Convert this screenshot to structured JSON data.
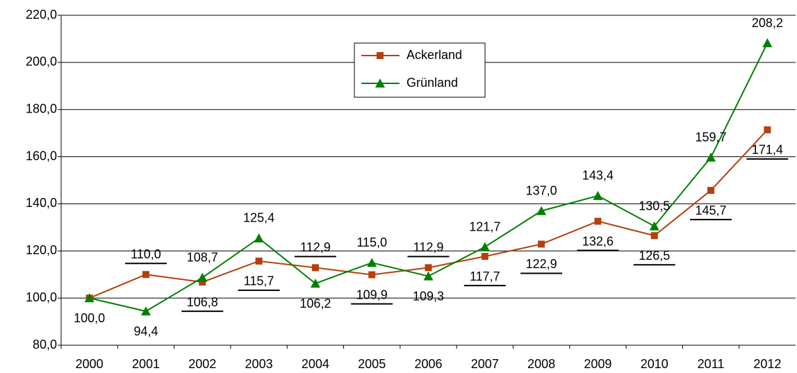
{
  "chart_data": {
    "type": "line",
    "categories": [
      "2000",
      "2001",
      "2002",
      "2003",
      "2004",
      "2005",
      "2006",
      "2007",
      "2008",
      "2009",
      "2010",
      "2011",
      "2012"
    ],
    "series": [
      {
        "name": "Ackerland",
        "color": "#b4400c",
        "marker": "square",
        "values": [
          100.0,
          110.0,
          106.8,
          115.7,
          112.9,
          109.9,
          112.9,
          117.7,
          122.9,
          132.6,
          126.5,
          145.7,
          171.4
        ],
        "value_labels": [
          null,
          "110,0",
          "106,8",
          "115,7",
          "112,9",
          "109,9",
          "112,9",
          "117,7",
          "122,9",
          "132,6",
          "126,5",
          "145,7",
          "171,4"
        ]
      },
      {
        "name": "Grünland",
        "color": "#008000",
        "marker": "triangle",
        "values": [
          100.0,
          94.4,
          108.7,
          125.4,
          106.2,
          115.0,
          109.3,
          121.7,
          137.0,
          143.4,
          130.5,
          159.7,
          208.2
        ],
        "value_labels": [
          "100,0",
          "94,4",
          "108,7",
          "125,4",
          "106,2",
          "115,0",
          "109,3",
          "121,7",
          "137,0",
          "143,4",
          "130,5",
          "159,7",
          "208,2"
        ]
      }
    ],
    "ylim": [
      80,
      220
    ],
    "yticks": [
      {
        "value": 80,
        "label": "80,0"
      },
      {
        "value": 100,
        "label": "100,0"
      },
      {
        "value": 120,
        "label": "120,0"
      },
      {
        "value": 140,
        "label": "140,0"
      },
      {
        "value": 160,
        "label": "160,0"
      },
      {
        "value": 180,
        "label": "180,0"
      },
      {
        "value": 200,
        "label": "200,0"
      },
      {
        "value": 220,
        "label": "220,0"
      }
    ],
    "grid": true,
    "legend": "top-center"
  }
}
